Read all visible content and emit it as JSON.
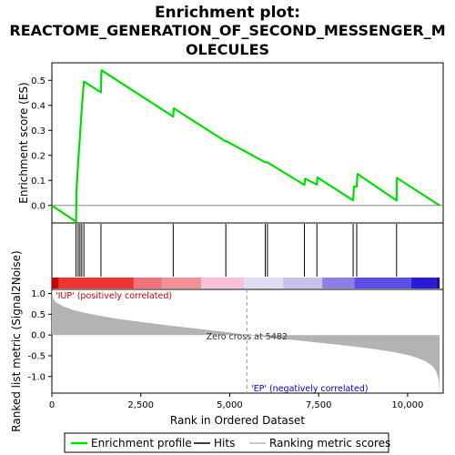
{
  "chart_data": {
    "type": "line",
    "title_lines": [
      "Enrichment plot:",
      "REACTOME_GENERATION_OF_SECOND_MESSENGER_M",
      "OLECULES"
    ],
    "es_panel": {
      "ylabel": "Enrichment score (ES)",
      "ylim": [
        -0.07,
        0.57
      ],
      "yticks": [
        0.0,
        0.1,
        0.2,
        0.3,
        0.4,
        0.5
      ],
      "ytick_labels": [
        "0.0",
        "0.1",
        "0.2",
        "0.3",
        "0.4",
        "0.5"
      ],
      "series": [
        {
          "name": "Enrichment profile",
          "color": "#00dd00",
          "x": [
            0,
            680,
            690,
            740,
            790,
            840,
            900,
            1380,
            1395,
            3410,
            3425,
            4890,
            4905,
            6000,
            6060,
            7100,
            7120,
            7450,
            7465,
            8470,
            8490,
            8570,
            8590,
            9690,
            9700,
            10900
          ],
          "y": [
            0.0,
            -0.065,
            0.057,
            0.173,
            0.28,
            0.385,
            0.495,
            0.452,
            0.54,
            0.355,
            0.388,
            0.255,
            0.257,
            0.172,
            0.172,
            0.082,
            0.107,
            0.083,
            0.112,
            0.02,
            0.075,
            0.075,
            0.126,
            0.02,
            0.11,
            0.0
          ]
        }
      ]
    },
    "hits_panel": {
      "hit_positions": [
        680,
        740,
        790,
        840,
        900,
        1380,
        3410,
        4890,
        6000,
        6060,
        7100,
        7450,
        8470,
        8570,
        9690
      ]
    },
    "rank_panel": {
      "ylabel": "Ranked list metric (Signal2Noise)",
      "xlabel": "Rank in Ordered Dataset",
      "xlim": [
        0,
        11000
      ],
      "xticks": [
        0,
        2500,
        5000,
        7500,
        10000
      ],
      "xtick_labels": [
        "0",
        "2,500",
        "5,000",
        "7,500",
        "10,000"
      ],
      "ylim": [
        -1.4,
        1.1
      ],
      "yticks": [
        -1.0,
        -0.5,
        0.0,
        0.5,
        1.0
      ],
      "ytick_labels": [
        "-1.0",
        "-0.5",
        "0.0",
        "0.5",
        "1.0"
      ],
      "metric_curve": {
        "x": [
          0,
          30,
          100,
          300,
          600,
          1000,
          1500,
          2000,
          3000,
          4000,
          5000,
          5482,
          6000,
          7000,
          8000,
          9000,
          9600,
          10000,
          10300,
          10500,
          10700,
          10800,
          10880,
          10900
        ],
        "y": [
          1.1,
          0.9,
          0.8,
          0.7,
          0.6,
          0.52,
          0.44,
          0.37,
          0.26,
          0.16,
          0.06,
          0.0,
          -0.05,
          -0.14,
          -0.23,
          -0.33,
          -0.41,
          -0.48,
          -0.56,
          -0.63,
          -0.75,
          -0.87,
          -1.1,
          -1.4
        ]
      },
      "zero_cross_rank": 5482,
      "zero_cross_label": "Zero cross at 5482",
      "positive_label": "'IUP' (positively correlated)",
      "negative_label": "'EP' (negatively correlated)",
      "positive_color": "#cc0000",
      "negative_color": "#0000cc",
      "fill_color": "#b3b3b3",
      "color_bar": [
        {
          "from": 0,
          "to": 200,
          "color": "#cc0000"
        },
        {
          "from": 200,
          "to": 2300,
          "color": "#ee3333"
        },
        {
          "from": 2300,
          "to": 3100,
          "color": "#f4727a"
        },
        {
          "from": 3100,
          "to": 4200,
          "color": "#f4909a"
        },
        {
          "from": 4200,
          "to": 5400,
          "color": "#f9c0dc"
        },
        {
          "from": 5400,
          "to": 6500,
          "color": "#e2dcf4"
        },
        {
          "from": 6500,
          "to": 7600,
          "color": "#c9c0f0"
        },
        {
          "from": 7600,
          "to": 8500,
          "color": "#8c80e8"
        },
        {
          "from": 8500,
          "to": 10100,
          "color": "#5a4ee6"
        },
        {
          "from": 10100,
          "to": 10800,
          "color": "#2a1ad8"
        },
        {
          "from": 10800,
          "to": 10900,
          "color": "#1a0ab0"
        }
      ]
    },
    "legend": {
      "placement": "bottom",
      "items": [
        {
          "label": "Enrichment profile",
          "color": "#00dd00"
        },
        {
          "label": "Hits",
          "color": "#000000"
        },
        {
          "label": "Ranking metric scores",
          "color": "#b3b3b3"
        }
      ]
    },
    "grid": false
  }
}
